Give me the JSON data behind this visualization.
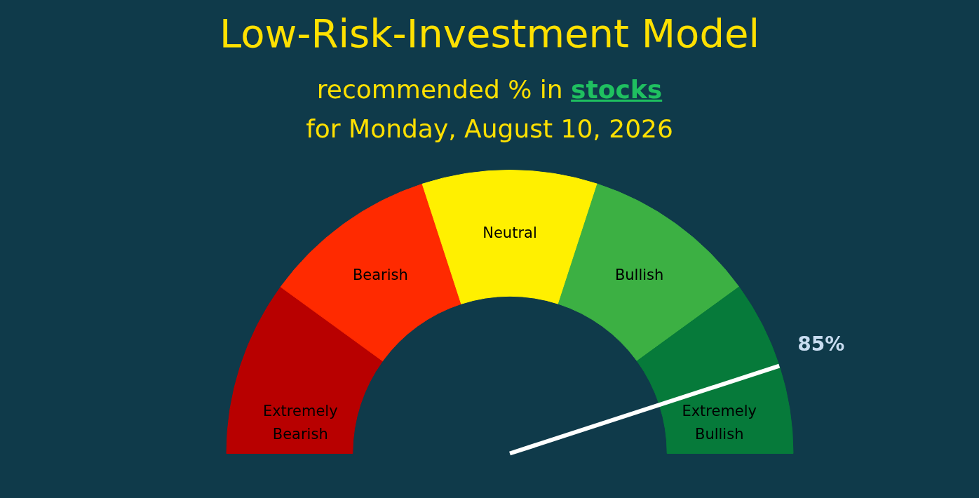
{
  "chart_data": {
    "type": "donut",
    "title": "Low-Risk-Investment Model",
    "subtitle": "recommended % in stocks\nfor Monday,  August 10, 2026",
    "categories": [
      "Extremely Bearish",
      "Bearish",
      "Neutral",
      "Bullish",
      "Extremely Bullish"
    ],
    "values": [
      20,
      20,
      20,
      20,
      20
    ],
    "colors": [
      "#b80000",
      "#ff2a00",
      "#fff000",
      "#3cb043",
      "#067a3a"
    ],
    "needle": "Extremely Bullish",
    "annotations": [
      "85%"
    ],
    "legend": false
  }
}
